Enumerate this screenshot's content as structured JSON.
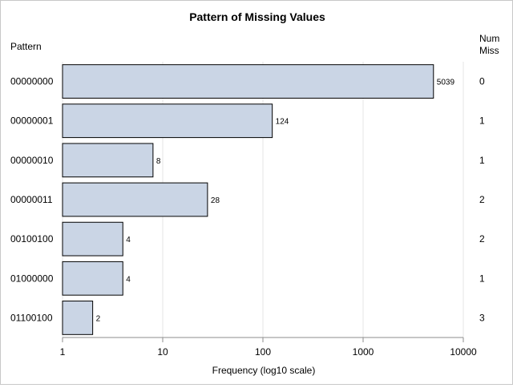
{
  "chart_data": {
    "type": "bar",
    "orientation": "horizontal",
    "title": "Pattern of Missing Values",
    "ylabel": "Pattern",
    "right_label_line1": "Num",
    "right_label_line2": "Miss",
    "xlabel": "Frequency (log10 scale)",
    "x_scale": "log10",
    "xlim": [
      1,
      10000
    ],
    "x_ticks": [
      1,
      10,
      100,
      1000,
      10000
    ],
    "x_tick_labels": [
      "1",
      "10",
      "100",
      "1000",
      "10000"
    ],
    "grid": "vertical",
    "categories": [
      "00000000",
      "00000001",
      "00000010",
      "00000011",
      "00100100",
      "01000000",
      "01100100"
    ],
    "values": [
      5039,
      124,
      8,
      28,
      4,
      4,
      2
    ],
    "value_labels": [
      "5039",
      "124",
      "8",
      "28",
      "4",
      "4",
      "2"
    ],
    "num_miss": [
      "0",
      "1",
      "1",
      "2",
      "2",
      "1",
      "3"
    ],
    "bar_color": "#cad5e5",
    "bar_edge_color": "#000000"
  }
}
